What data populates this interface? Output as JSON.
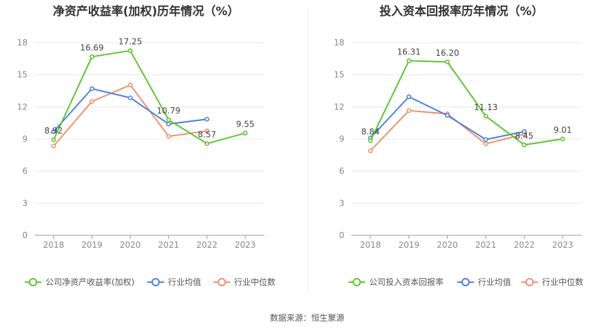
{
  "source_label": "数据来源：恒生聚源",
  "colors": {
    "company": "#5cc42d",
    "industry_avg": "#4a7fe0",
    "industry_median": "#f0906a"
  },
  "chart_data": [
    {
      "type": "line",
      "title": "净资产收益率(加权)历年情况（%）",
      "x": [
        "2018",
        "2019",
        "2020",
        "2021",
        "2022",
        "2023"
      ],
      "ylim": [
        0,
        18
      ],
      "yticks": [
        "0",
        "3",
        "6",
        "9",
        "12",
        "15",
        "18"
      ],
      "grid": true,
      "legend_position": "bottom",
      "series": [
        {
          "name": "公司净资产收益率(加权)",
          "values": [
            8.92,
            16.69,
            17.25,
            10.79,
            8.57,
            9.55
          ],
          "labels": [
            "8.92",
            "16.69",
            "17.25",
            "10.79",
            "8.57",
            "9.55"
          ]
        },
        {
          "name": "行业均值",
          "values": [
            9.7,
            13.7,
            12.85,
            10.4,
            10.85,
            null
          ]
        },
        {
          "name": "行业中位数",
          "values": [
            8.35,
            12.5,
            14.05,
            9.25,
            9.75,
            null
          ]
        }
      ]
    },
    {
      "type": "line",
      "title": "投入资本回报率历年情况（%）",
      "x": [
        "2018",
        "2019",
        "2020",
        "2021",
        "2022",
        "2023"
      ],
      "ylim": [
        0,
        18
      ],
      "yticks": [
        "0",
        "3",
        "6",
        "9",
        "12",
        "15",
        "18"
      ],
      "grid": true,
      "legend_position": "bottom",
      "series": [
        {
          "name": "公司投入资本回报率",
          "values": [
            8.84,
            16.31,
            16.2,
            11.13,
            8.45,
            9.01
          ],
          "labels": [
            "8.84",
            "16.31",
            "16.20",
            "11.13",
            "8.45",
            "9.01"
          ]
        },
        {
          "name": "行业均值",
          "values": [
            9.1,
            12.95,
            11.2,
            8.95,
            9.7,
            null
          ]
        },
        {
          "name": "行业中位数",
          "values": [
            7.9,
            11.65,
            11.35,
            8.55,
            9.45,
            null
          ]
        }
      ]
    }
  ]
}
